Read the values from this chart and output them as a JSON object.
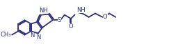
{
  "bg_color": "#ffffff",
  "line_color": "#2d2d7a",
  "line_width": 1.3,
  "font_size": 6.0,
  "fig_width": 2.56,
  "fig_height": 0.8,
  "dpi": 100,
  "xlim": [
    0,
    256
  ],
  "ylim": [
    0,
    80
  ]
}
